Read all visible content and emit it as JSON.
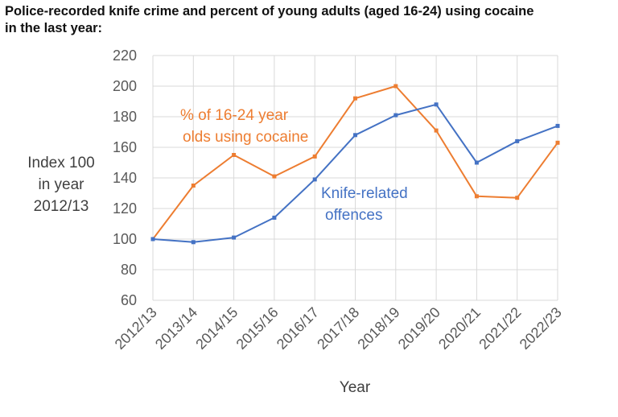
{
  "chart_data": {
    "type": "line",
    "title_line1": "Police-recorded knife crime and percent of young adults (aged 16-24) using cocaine",
    "title_line2": "in the last year:",
    "xlabel": "Year",
    "ylabel_lines": [
      "Index 100",
      "in year",
      "2012/13"
    ],
    "ylim": [
      60,
      220
    ],
    "yticks": [
      60,
      80,
      100,
      120,
      140,
      160,
      180,
      200,
      220
    ],
    "categories": [
      "2012/13",
      "2013/14",
      "2014/15",
      "2015/16",
      "2016/17",
      "2017/18",
      "2018/19",
      "2019/20",
      "2020/21",
      "2021/22",
      "2022/23"
    ],
    "grid": true,
    "series": [
      {
        "name": "% of 16-24 year olds using cocaine",
        "label_lines": [
          "% of 16-24 year",
          "olds using cocaine"
        ],
        "color": "#ED7D31",
        "values": [
          100,
          135,
          155,
          141,
          154,
          192,
          200,
          171,
          128,
          127,
          163
        ]
      },
      {
        "name": "Knife-related offences",
        "label_lines": [
          "Knife-related",
          "offences"
        ],
        "color": "#4472C4",
        "values": [
          100,
          98,
          101,
          114,
          139,
          168,
          181,
          188,
          150,
          164,
          174
        ]
      }
    ]
  },
  "colors": {
    "grid": "#D9D9D9",
    "tick_text": "#595959"
  }
}
